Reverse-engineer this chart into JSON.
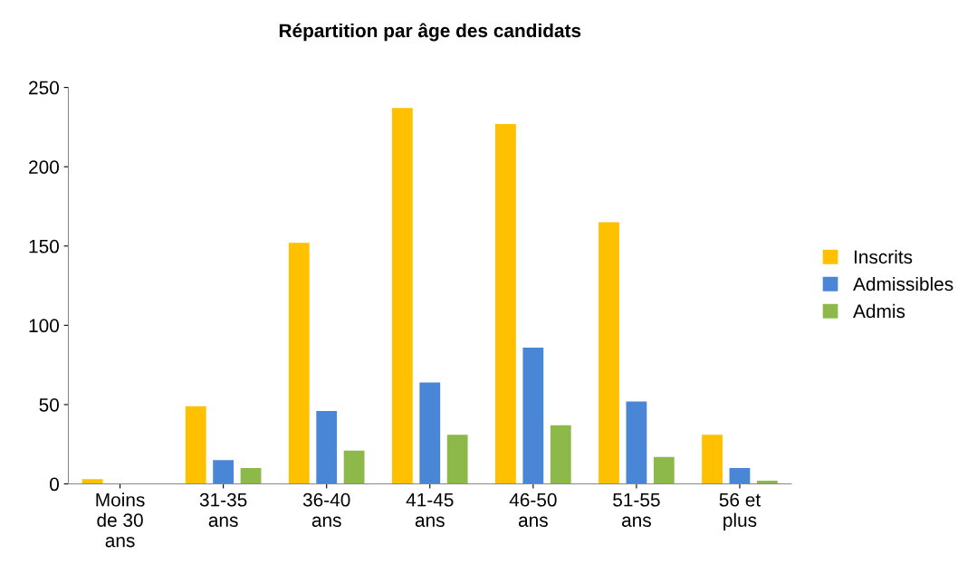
{
  "chart_data": {
    "type": "bar",
    "title": "Répartition par âge des candidats",
    "categories": [
      "Moins\nde 30\nans",
      "31-35\nans",
      "36-40\nans",
      "41-45\nans",
      "46-50\nans",
      "51-55\nans",
      "56 et\nplus"
    ],
    "series": [
      {
        "name": "Inscrits",
        "color": "#ffc000",
        "values": [
          3,
          49,
          152,
          237,
          227,
          165,
          31
        ]
      },
      {
        "name": "Admissibles",
        "color": "#4a86d6",
        "values": [
          0,
          15,
          46,
          64,
          86,
          52,
          10
        ]
      },
      {
        "name": "Admis",
        "color": "#8db94a",
        "values": [
          0,
          10,
          21,
          31,
          37,
          17,
          2
        ]
      }
    ],
    "ylim": [
      0,
      250
    ],
    "yticks": [
      0,
      50,
      100,
      150,
      200,
      250
    ],
    "grid": false,
    "legend": "right"
  }
}
